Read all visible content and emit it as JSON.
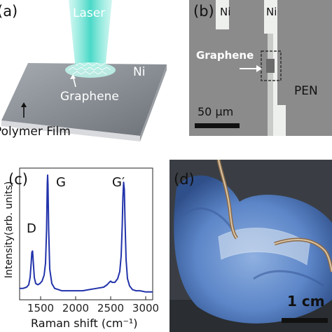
{
  "panels": {
    "a": {
      "tag": "(a)",
      "laser": "Laser",
      "graphene": "Graphene",
      "ni": "Ni",
      "polymer": "Polymer Film"
    },
    "b": {
      "tag": "(b)",
      "ni_left": "Ni",
      "ni_right": "Ni",
      "graphene": "Graphene",
      "pen": "PEN",
      "scale": "50 µm"
    },
    "c": {
      "tag": "(c)",
      "peak_d": "D",
      "peak_g": "G",
      "peak_g2": "G′"
    },
    "d": {
      "tag": "(d)",
      "scale": "1 cm"
    }
  },
  "chart_data": {
    "type": "line",
    "title": "",
    "xlabel": "Raman shift (cm⁻¹)",
    "ylabel": "Intensity(arb. units)",
    "xlim": [
      1200,
      3100
    ],
    "xticks": [
      1500,
      2000,
      2500,
      3000
    ],
    "xtick_labels": [
      "1500",
      "2000",
      "2500",
      "3000"
    ],
    "yticks_shown": false,
    "color": "#2233aa",
    "series": [
      {
        "x": [
          1200,
          1250,
          1300,
          1330,
          1350,
          1365,
          1375,
          1385,
          1395,
          1410,
          1430,
          1460,
          1490,
          1520,
          1550,
          1570,
          1585,
          1595,
          1600,
          1605,
          1615,
          1630,
          1660,
          1700,
          1800,
          1900,
          2000,
          2100,
          2200,
          2300,
          2400,
          2450,
          2480,
          2500,
          2520,
          2560,
          2600,
          2630,
          2650,
          2665,
          2675,
          2685,
          2695,
          2705,
          2720,
          2740,
          2770,
          2810,
          2860,
          2920,
          3000,
          3100
        ],
        "y": [
          0.06,
          0.06,
          0.07,
          0.09,
          0.15,
          0.27,
          0.36,
          0.37,
          0.28,
          0.15,
          0.1,
          0.09,
          0.1,
          0.12,
          0.17,
          0.27,
          0.55,
          0.93,
          1.0,
          0.92,
          0.55,
          0.22,
          0.1,
          0.06,
          0.04,
          0.04,
          0.04,
          0.04,
          0.05,
          0.06,
          0.07,
          0.09,
          0.11,
          0.12,
          0.11,
          0.11,
          0.14,
          0.2,
          0.33,
          0.58,
          0.82,
          0.94,
          0.88,
          0.62,
          0.3,
          0.14,
          0.08,
          0.05,
          0.04,
          0.04,
          0.03,
          0.03
        ]
      }
    ]
  }
}
